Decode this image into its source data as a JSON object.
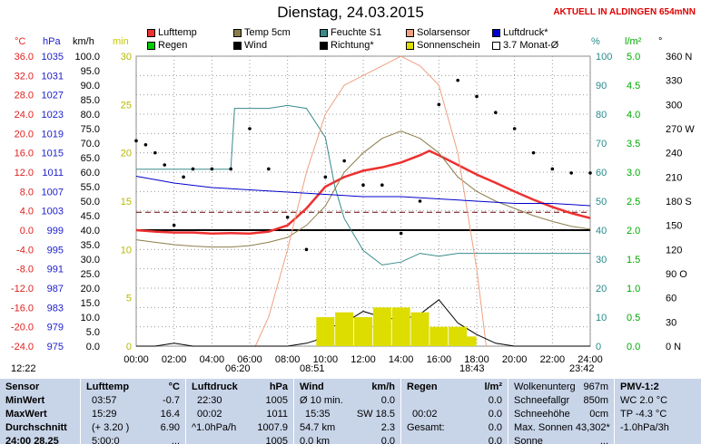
{
  "header": {
    "title": "Dienstag, 24.03.2015",
    "site": "AKTUELL IN ALDINGEN 654mNN"
  },
  "legend": [
    {
      "label": "Lufttemp",
      "color": "#ee3030"
    },
    {
      "label": "Temp 5cm",
      "color": "#8b7d4a"
    },
    {
      "label": "Feuchte S1",
      "color": "#3a8a8a"
    },
    {
      "label": "Solarsensor",
      "color": "#f0a080"
    },
    {
      "label": "Luftdruck*",
      "color": "#0000cc"
    },
    {
      "label": "Regen",
      "color": "#00cc00"
    },
    {
      "label": "Wind",
      "color": "#000000"
    },
    {
      "label": "Richtung*",
      "color": "#000000"
    },
    {
      "label": "Sonnenschein",
      "color": "#dddd00"
    },
    {
      "label": "3.7 Monat-Ø",
      "color": "#ffffff"
    }
  ],
  "units": {
    "temp": "°C",
    "press": "hPa",
    "wind": "km/h",
    "min": "min",
    "hum": "%",
    "rain": "l/m²",
    "dir": "°"
  },
  "chart_data": {
    "type": "line",
    "title": "Dienstag, 24.03.2015",
    "x_ticks": [
      "00:00",
      "02:00",
      "04:00",
      "06:00",
      "08:00",
      "10:00",
      "12:00",
      "14:00",
      "16:00",
      "18:00",
      "20:00",
      "22:00",
      "24:00"
    ],
    "axes": {
      "temp_c": {
        "range": [
          -24,
          36
        ],
        "ticks": [
          "36.0",
          "32.0",
          "28.0",
          "24.0",
          "20.0",
          "16.0",
          "12.0",
          "8.0",
          "4.0",
          "0.0",
          "-4.0",
          "-8.0",
          "-12.0",
          "-16.0",
          "-20.0",
          "-24.0"
        ]
      },
      "pressure_hpa": {
        "range": [
          975,
          1039
        ],
        "ticks": [
          "1035",
          "1031",
          "1027",
          "1023",
          "1019",
          "1015",
          "1011",
          "1007",
          "1003",
          "999",
          "995",
          "991",
          "987",
          "983",
          "979",
          "975"
        ]
      },
      "wind_kmh": {
        "range": [
          0,
          100
        ],
        "ticks": [
          "100.0",
          "95.0",
          "90.0",
          "85.0",
          "80.0",
          "75.0",
          "70.0",
          "65.0",
          "60.0",
          "55.0",
          "50.0",
          "45.0",
          "40.0",
          "35.0",
          "30.0",
          "25.0",
          "20.0",
          "15.0",
          "10.0",
          "5.0",
          "0.0"
        ]
      },
      "minutes": {
        "range": [
          0,
          30
        ],
        "ticks": [
          "30",
          "25",
          "20",
          "15",
          "10",
          "5",
          "0"
        ]
      },
      "humidity_pct": {
        "range": [
          0,
          100
        ],
        "ticks": [
          "100",
          "90",
          "80",
          "70",
          "60",
          "50",
          "40",
          "30",
          "20",
          "10",
          "0"
        ]
      },
      "rain_lm2": {
        "range": [
          0,
          5
        ],
        "ticks": [
          "5.0",
          "4.5",
          "4.0",
          "3.5",
          "3.0",
          "2.5",
          "2.0",
          "1.5",
          "1.0",
          "0.5",
          "0.0"
        ]
      },
      "direction_deg": {
        "range": [
          0,
          360
        ],
        "ticks": [
          "360 N",
          "330",
          "300",
          "270 W",
          "240",
          "210",
          "180 S",
          "150",
          "120",
          "90 O",
          "60",
          "30",
          "0 N"
        ]
      }
    },
    "series": [
      {
        "name": "Lufttemp",
        "axis": "temp_c",
        "x": [
          0,
          1,
          2,
          3,
          4,
          5,
          6,
          7,
          8,
          9,
          10,
          11,
          12,
          13,
          14,
          15,
          15.5,
          16,
          17,
          18,
          19,
          20,
          21,
          22,
          23,
          24
        ],
        "values": [
          0.0,
          -0.3,
          -0.5,
          -0.5,
          -0.7,
          -0.6,
          -0.7,
          -0.3,
          1.0,
          4.5,
          9.0,
          11.0,
          12.3,
          13.0,
          14.0,
          15.5,
          16.4,
          15.5,
          13.5,
          11.5,
          9.8,
          8.0,
          6.3,
          4.8,
          3.5,
          2.5
        ]
      },
      {
        "name": "Temp 5cm",
        "axis": "temp_c",
        "x": [
          0,
          1,
          2,
          3,
          4,
          5,
          6,
          7,
          8,
          9,
          10,
          11,
          12,
          13,
          14,
          15,
          16,
          17,
          18,
          19,
          20,
          21,
          22,
          23,
          24
        ],
        "values": [
          -2.0,
          -2.5,
          -3.0,
          -3.3,
          -3.5,
          -3.5,
          -3.2,
          -2.5,
          -1.5,
          1.0,
          5.0,
          12.0,
          16.0,
          19.0,
          20.5,
          19.0,
          16.0,
          11.0,
          8.0,
          6.0,
          4.5,
          3.0,
          1.8,
          0.8,
          0.2
        ]
      },
      {
        "name": "Feuchte S1",
        "axis": "humidity_pct",
        "x": [
          0,
          1,
          2,
          3,
          4,
          5,
          5.2,
          6,
          7,
          8,
          9,
          10,
          10.5,
          11,
          12,
          13,
          14,
          15,
          16,
          17,
          18,
          19,
          20,
          21,
          22,
          23,
          24
        ],
        "values": [
          61,
          61,
          61,
          61,
          61,
          61,
          82,
          82,
          82,
          83,
          82,
          72,
          55,
          44,
          33,
          28,
          29,
          32,
          31,
          32,
          32,
          32,
          32,
          32,
          32,
          32,
          32
        ]
      },
      {
        "name": "Solarsensor",
        "axis": "minutes",
        "x": [
          6.3,
          7,
          8,
          9,
          10,
          11,
          12,
          13,
          14,
          15,
          16,
          17,
          18,
          18.5
        ],
        "values": [
          0,
          3,
          10,
          18,
          24,
          27,
          28,
          29,
          30,
          29,
          27,
          20,
          8,
          0
        ]
      },
      {
        "name": "Luftdruck*",
        "axis": "pressure_hpa",
        "x": [
          0,
          2,
          4,
          6,
          8,
          10,
          12,
          14,
          16,
          18,
          20,
          22,
          24
        ],
        "values": [
          1012.5,
          1011,
          1010,
          1009.5,
          1009,
          1008.5,
          1008,
          1008,
          1007.5,
          1007,
          1006.5,
          1006.5,
          1006
        ]
      },
      {
        "name": "Wind",
        "axis": "wind_kmh",
        "x": [
          0,
          1,
          2,
          3,
          4,
          5,
          6,
          7,
          8,
          9,
          9.5,
          10,
          11,
          12,
          13,
          14,
          15,
          16,
          17,
          18,
          19,
          20,
          21,
          22,
          23,
          24
        ],
        "values": [
          0,
          0,
          1,
          0,
          0,
          0,
          0,
          0,
          0,
          1,
          2,
          6,
          8,
          12,
          10,
          9,
          11,
          16,
          8,
          4,
          1,
          0,
          0,
          0,
          0,
          0
        ]
      },
      {
        "name": "Richtung*",
        "axis": "direction_deg",
        "x": [
          0,
          0.5,
          1,
          1.5,
          2,
          2.5,
          3,
          4,
          5,
          6,
          7,
          8,
          9,
          10,
          11,
          12,
          13,
          14,
          15,
          16,
          17,
          18,
          19,
          20,
          21,
          22,
          23,
          24
        ],
        "values": [
          255,
          250,
          240,
          225,
          150,
          210,
          220,
          220,
          220,
          270,
          220,
          160,
          120,
          210,
          230,
          200,
          200,
          140,
          180,
          300,
          330,
          310,
          290,
          270,
          240,
          220,
          215,
          215
        ]
      },
      {
        "name": "Sonnenschein",
        "axis": "minutes",
        "x": [
          10,
          11,
          12,
          13,
          14,
          15,
          16,
          17,
          17.5
        ],
        "values": [
          3,
          3.5,
          3,
          4,
          4,
          3.5,
          2,
          2,
          1
        ]
      }
    ],
    "reference_lines": [
      {
        "axis": "temp_c",
        "value": 0.0,
        "color": "#000000",
        "style": "solid"
      },
      {
        "axis": "temp_c",
        "value": 3.7,
        "color": "#6a0000",
        "style": "dashed"
      }
    ],
    "annotations": [
      {
        "label": "12:22",
        "pos": "left"
      },
      {
        "label": "06:20",
        "pos": "sunrise"
      },
      {
        "label": "08:51",
        "pos": "sun-start"
      },
      {
        "label": "18:43",
        "pos": "sunset"
      },
      {
        "label": "23:42",
        "pos": "right"
      }
    ]
  },
  "table": {
    "sensor": {
      "head": "Sensor",
      "rows": [
        "MinWert",
        "MaxWert",
        "Durchschnitt",
        "24:00 28.25"
      ]
    },
    "luft": {
      "head": "Lufttemp",
      "unit": "°C",
      "rows": [
        [
          "03:57",
          "-0.7"
        ],
        [
          "15:29",
          "16.4"
        ],
        [
          "(+ 3.20 )",
          "6.90"
        ],
        [
          "5:00:0",
          "..."
        ]
      ]
    },
    "druck": {
      "head": "Luftdruck",
      "unit": "hPa",
      "rows": [
        [
          "22:30",
          "1005"
        ],
        [
          "00:02",
          "1011"
        ],
        [
          "^1.0hPa/h",
          "1007.9"
        ],
        [
          "",
          "1005"
        ]
      ]
    },
    "wind": {
      "head": "Wind",
      "unit": "km/h",
      "rows": [
        [
          "Ø 10 min.",
          "0.0"
        ],
        [
          "15:35",
          "SW 18.5"
        ],
        [
          "54.7 km",
          "2.3"
        ],
        [
          "0.0 km",
          "0.0"
        ]
      ]
    },
    "regen": {
      "head": "Regen",
      "unit": "l/m²",
      "rows": [
        [
          "",
          "0.0"
        ],
        [
          "00:02",
          "0.0"
        ],
        [
          "Gesamt:",
          "0.0"
        ],
        [
          "",
          "0.0"
        ]
      ]
    },
    "wolken": {
      "rows": [
        [
          "Wolkenunterg",
          "967m"
        ],
        [
          "Schneefallgr",
          "850m"
        ],
        [
          "Schneehöhe",
          "0cm"
        ],
        [
          "Max. Sonnen 43,302*",
          ""
        ],
        [
          "Sonne",
          "..."
        ]
      ]
    },
    "pmv": {
      "head": "PMV-1:2",
      "rows": [
        "WC 2.0 °C",
        "TP -4.3 °C",
        "-1.0hPa/3h",
        ""
      ]
    }
  }
}
